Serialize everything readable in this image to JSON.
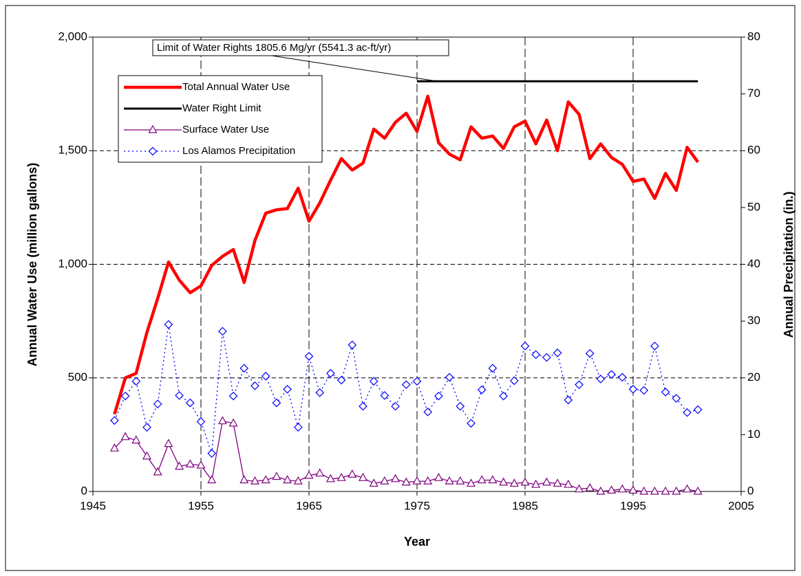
{
  "chart_data": {
    "type": "line",
    "xlabel": "Year",
    "ylabel": "Annual Water Use (million gallons)",
    "y2label": "Annual Precipitation (in.)",
    "annotation": "Limit of Water Rights 1805.6 Mg/yr (5541.3 ac-ft/yr)",
    "x": [
      1947,
      1948,
      1949,
      1950,
      1951,
      1952,
      1953,
      1954,
      1955,
      1956,
      1957,
      1958,
      1959,
      1960,
      1961,
      1962,
      1963,
      1964,
      1965,
      1966,
      1967,
      1968,
      1969,
      1970,
      1971,
      1972,
      1973,
      1974,
      1975,
      1976,
      1977,
      1978,
      1979,
      1980,
      1981,
      1982,
      1983,
      1984,
      1985,
      1986,
      1987,
      1988,
      1989,
      1990,
      1991,
      1992,
      1993,
      1994,
      1995,
      1996,
      1997,
      1998,
      1999,
      2000,
      2001
    ],
    "series": [
      {
        "name": "Total Annual Water Use",
        "color": "#ff0000",
        "width": 4.5,
        "marker": "none",
        "dash": "solid",
        "values": [
          340,
          500,
          520,
          700,
          850,
          1010,
          930,
          875,
          905,
          995,
          1035,
          1065,
          920,
          1105,
          1225,
          1240,
          1245,
          1335,
          1190,
          1270,
          1370,
          1465,
          1415,
          1445,
          1595,
          1555,
          1625,
          1665,
          1585,
          1740,
          1535,
          1485,
          1460,
          1605,
          1555,
          1565,
          1510,
          1605,
          1630,
          1530,
          1635,
          1500,
          1715,
          1660,
          1465,
          1530,
          1470,
          1440,
          1365,
          1375,
          1290,
          1400,
          1325,
          1515,
          1450
        ]
      },
      {
        "name": "Water Right Limit",
        "color": "#000000",
        "width": 3,
        "marker": "none",
        "dash": "solid",
        "x": [
          1975,
          2001
        ],
        "values": [
          1805.6,
          1805.6
        ]
      },
      {
        "name": "Surface Water Use",
        "color": "#800080",
        "width": 1.3,
        "marker": "triangle",
        "dash": "solid",
        "values": [
          190,
          240,
          225,
          155,
          85,
          210,
          110,
          120,
          115,
          50,
          310,
          300,
          50,
          45,
          50,
          65,
          50,
          45,
          70,
          80,
          55,
          60,
          75,
          60,
          35,
          45,
          55,
          40,
          45,
          45,
          60,
          45,
          45,
          35,
          50,
          50,
          40,
          35,
          40,
          30,
          40,
          35,
          30,
          10,
          15,
          0,
          5,
          10,
          5,
          0,
          0,
          0,
          0,
          10,
          0
        ]
      },
      {
        "name": "Los Alamos Precipitation",
        "color": "#0000ff",
        "width": 1.3,
        "marker": "diamond",
        "dash": "dotted",
        "axis": "y2",
        "values": [
          12.5,
          16.8,
          19.4,
          11.3,
          15.4,
          29.4,
          16.9,
          15.6,
          12.3,
          6.7,
          28.2,
          16.8,
          21.7,
          18.6,
          20.3,
          15.6,
          18,
          11.3,
          23.8,
          17.4,
          20.8,
          19.6,
          25.8,
          15,
          19.4,
          16.9,
          15,
          18.8,
          19.4,
          14,
          16.8,
          20.1,
          15,
          12,
          17.9,
          21.7,
          16.8,
          19.5,
          25.6,
          24.1,
          23.6,
          24.4,
          16.1,
          18.8,
          24.3,
          19.8,
          20.6,
          20.1,
          18,
          17.8,
          25.6,
          17.5,
          16.4,
          13.9,
          14.4
        ]
      }
    ],
    "xlim": [
      1945,
      2005
    ],
    "xticks": [
      1945,
      1955,
      1965,
      1975,
      1985,
      1995,
      2005
    ],
    "ylim": [
      0,
      2000
    ],
    "yticks": [
      0,
      500,
      {
        "value": 1000,
        "label": "1,000"
      },
      {
        "value": 1500,
        "label": "1,500"
      },
      {
        "value": 2000,
        "label": "2,000"
      }
    ],
    "y2lim": [
      0,
      80
    ],
    "y2ticks": [
      0,
      10,
      20,
      30,
      40,
      50,
      60,
      70,
      80
    ],
    "grid": true,
    "legend": "upper left"
  }
}
